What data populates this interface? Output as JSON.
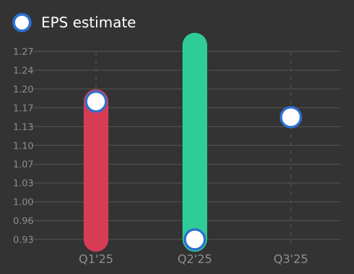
{
  "chart_data": {
    "type": "bar",
    "subtype": "range-bar-with-markers",
    "categories": [
      "Q1'25",
      "Q2'25",
      "Q3'25"
    ],
    "ranges": [
      {
        "category": "Q1'25",
        "low": 0.93,
        "high": 1.18,
        "color": "#d83c55"
      },
      {
        "category": "Q2'25",
        "low": 0.93,
        "high": 1.28,
        "color": "#2ecc96"
      },
      {
        "category": "Q3'25",
        "low": null,
        "high": null,
        "color": null
      }
    ],
    "series": [
      {
        "name": "EPS estimate",
        "values": [
          1.18,
          0.93,
          1.15
        ]
      }
    ],
    "y_ticks": [
      "0.93",
      "0.96",
      "1.00",
      "1.03",
      "1.07",
      "1.10",
      "1.13",
      "1.17",
      "1.20",
      "1.24",
      "1.27"
    ],
    "ylim": [
      0.925,
      1.2775
    ],
    "grid": true,
    "legend_position": "top-left",
    "colors": {
      "background": "#333333",
      "grid": "#4c4c4c",
      "tick_label": "#8e8e8e",
      "marker_fill": "#ffffff",
      "marker_stroke": "#2d6fd0"
    }
  }
}
